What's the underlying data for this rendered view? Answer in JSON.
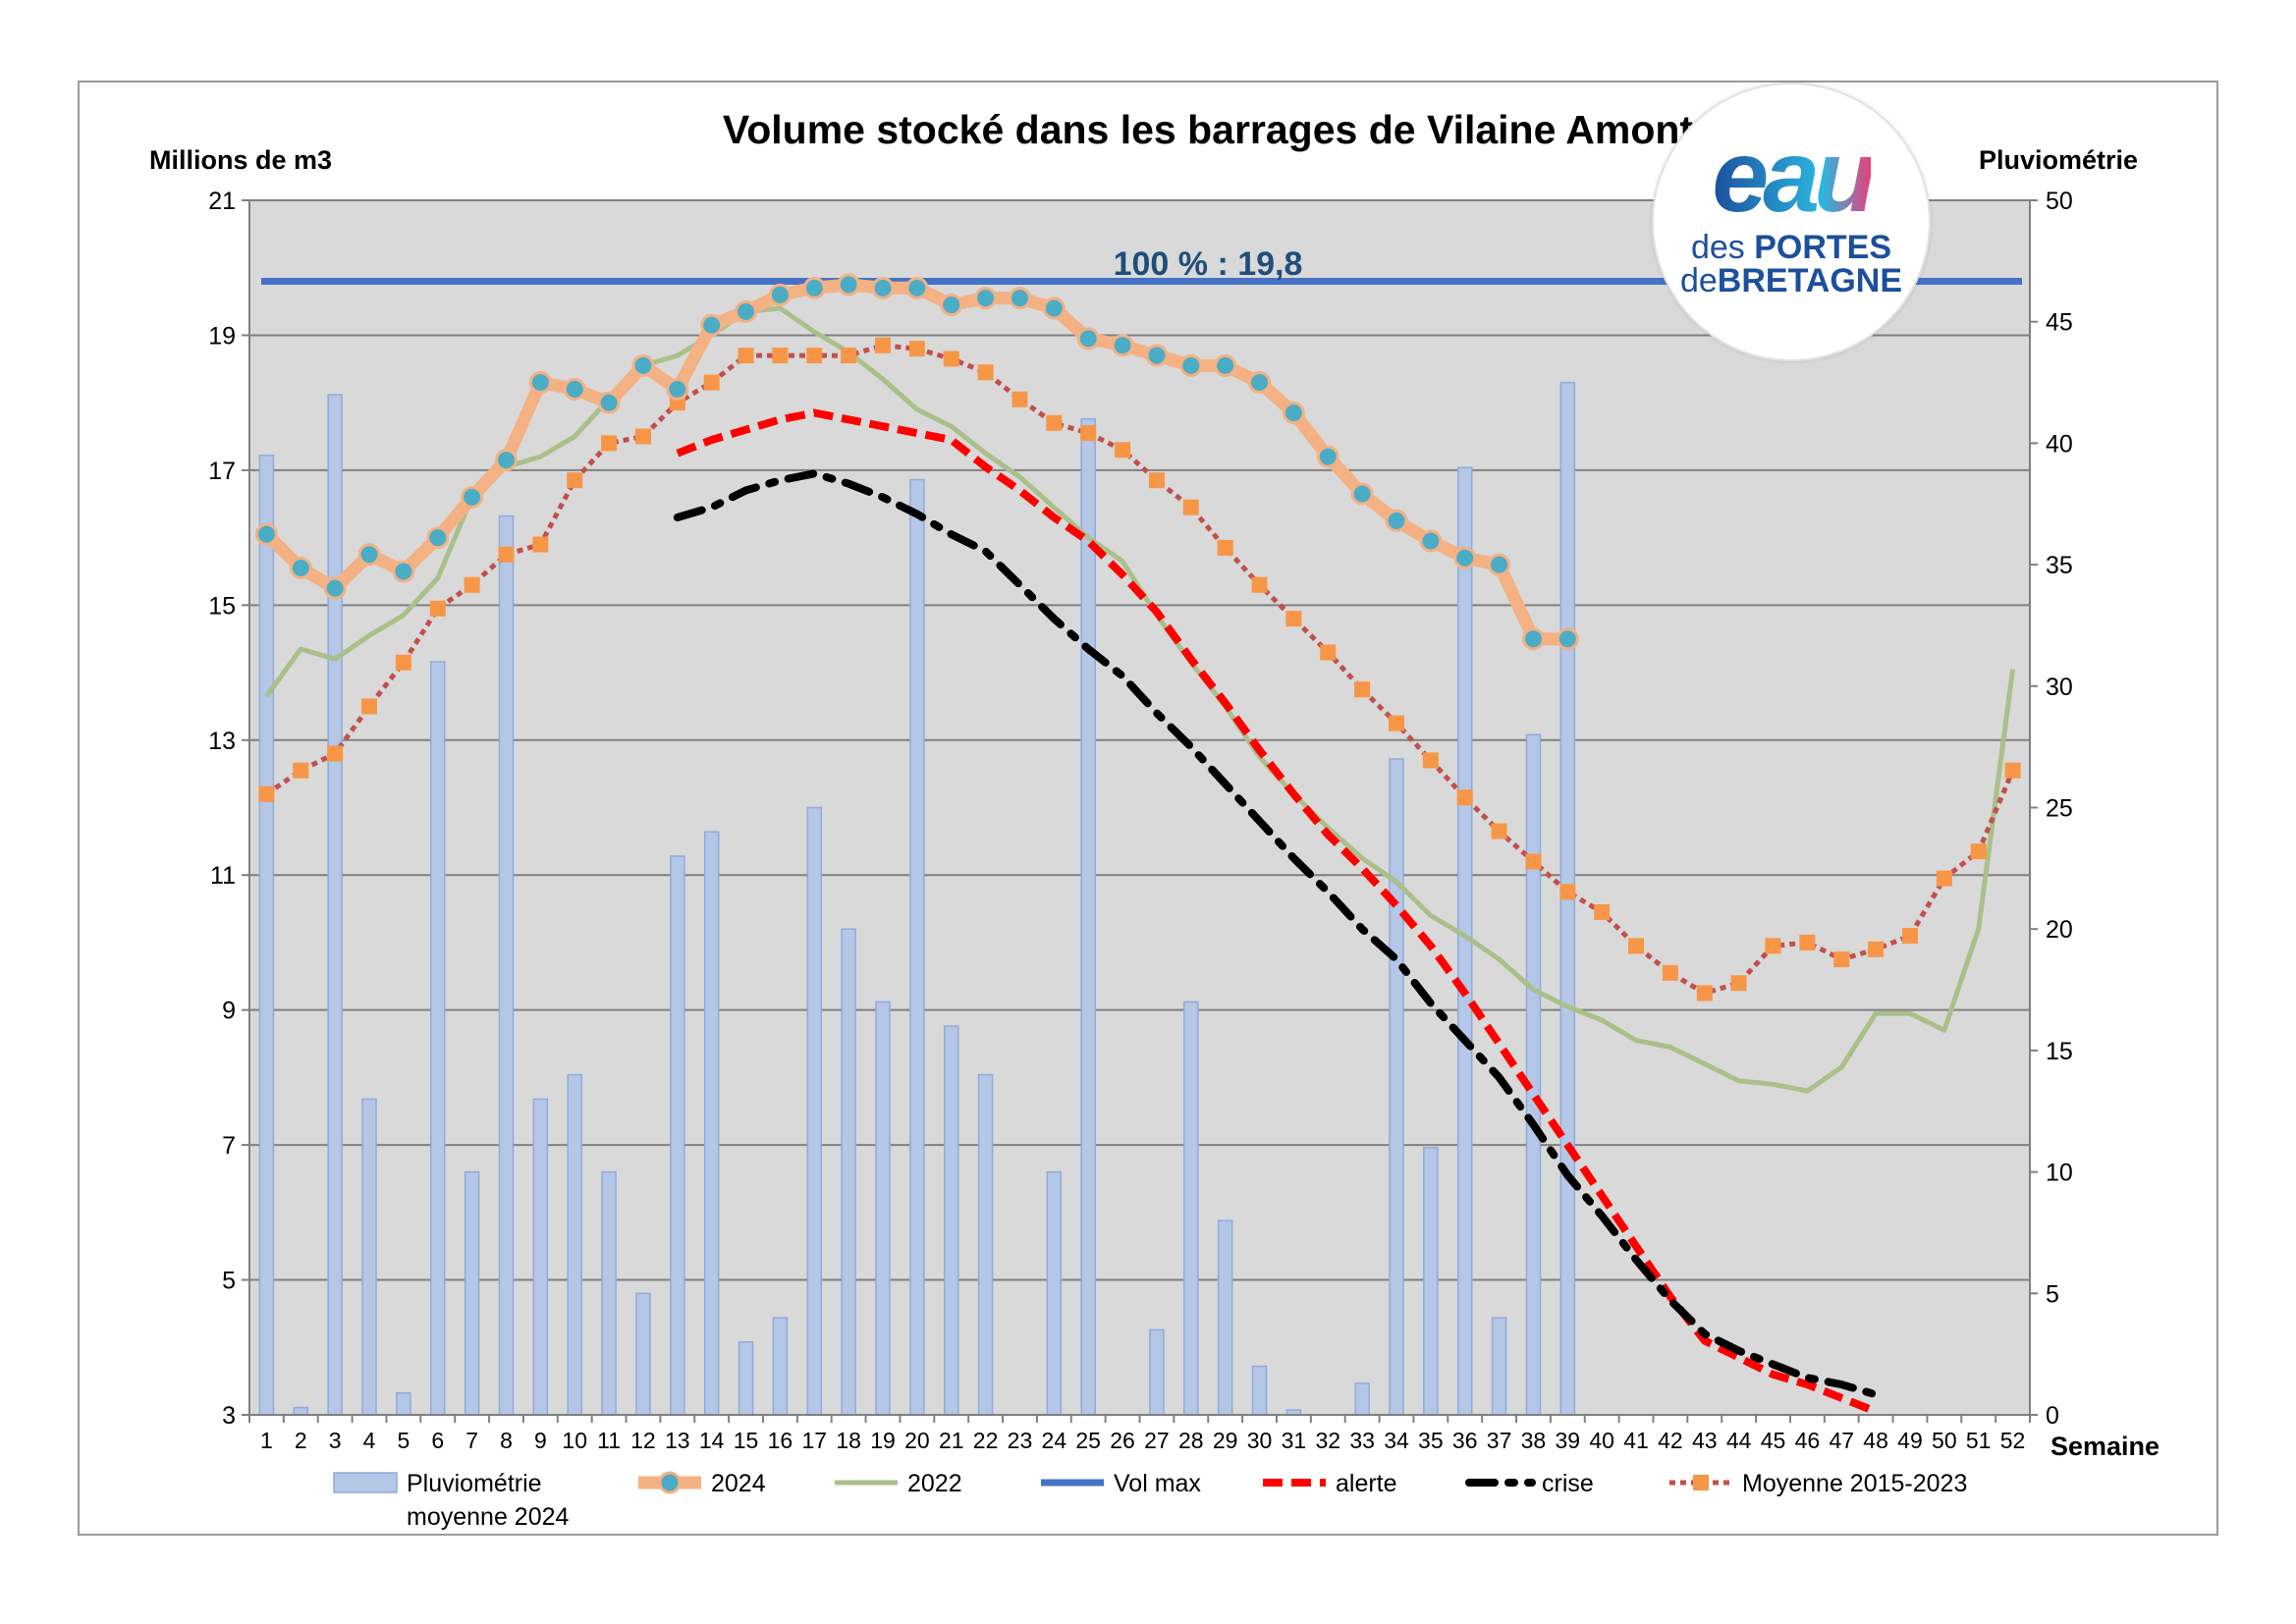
{
  "chart_data": {
    "type": "combo",
    "title": "Volume stocké dans les barrages de Vilaine Amont",
    "ylabel": "Millions de m3",
    "y2label": "Pluviométrie",
    "xlabel": "Semaine",
    "ylim": [
      3,
      21
    ],
    "y_ticks": [
      3,
      5,
      7,
      9,
      11,
      13,
      15,
      17,
      19,
      21
    ],
    "y2lim": [
      0,
      50
    ],
    "y2_ticks": [
      0,
      5,
      10,
      15,
      20,
      25,
      30,
      35,
      40,
      45,
      50
    ],
    "x_ticks": [
      1,
      2,
      3,
      4,
      5,
      6,
      7,
      8,
      9,
      10,
      11,
      12,
      13,
      14,
      15,
      16,
      17,
      18,
      19,
      20,
      21,
      22,
      23,
      24,
      25,
      26,
      27,
      28,
      29,
      30,
      31,
      32,
      33,
      34,
      35,
      36,
      37,
      38,
      39,
      40,
      41,
      42,
      43,
      44,
      45,
      46,
      47,
      48,
      49,
      50,
      51,
      52
    ],
    "grid": true,
    "legend_position": "bottom",
    "vol_max_label": "100 % : 19,8",
    "vol_max": 19.8,
    "series": [
      {
        "key": "pluvio",
        "name": "Pluviométrie moyenne 2024",
        "legend_lines": [
          "Pluviométrie",
          "moyenne 2024"
        ],
        "type": "bar",
        "axis": "right",
        "color": "#b4c7e7",
        "edge_color": "#8faadc",
        "x": [
          1,
          2,
          3,
          4,
          5,
          6,
          7,
          8,
          9,
          10,
          11,
          12,
          13,
          14,
          15,
          16,
          17,
          18,
          19,
          20,
          21,
          22,
          24,
          25,
          27,
          28,
          29,
          30,
          31,
          33,
          34,
          35,
          36,
          37,
          38,
          39
        ],
        "values": [
          39.5,
          0.3,
          42,
          13,
          0.9,
          31,
          10,
          37,
          13,
          14,
          10,
          5,
          23,
          24,
          3,
          4,
          25,
          20,
          17,
          38.5,
          16,
          14,
          10,
          41,
          3.5,
          17,
          8,
          2,
          0.2,
          1.3,
          27,
          11,
          39,
          4,
          28,
          42.5
        ]
      },
      {
        "key": "y2024",
        "name": "2024",
        "type": "line",
        "axis": "left",
        "color": "#f4b183",
        "marker_color": "#4bacc6",
        "x": [
          1,
          2,
          3,
          4,
          5,
          6,
          7,
          8,
          9,
          10,
          11,
          12,
          13,
          14,
          15,
          16,
          17,
          18,
          19,
          20,
          21,
          22,
          23,
          24,
          25,
          26,
          27,
          28,
          29,
          30,
          31,
          32,
          33,
          34,
          35,
          36,
          37,
          38,
          39
        ],
        "values": [
          16.05,
          15.55,
          15.25,
          15.75,
          15.5,
          16.0,
          16.6,
          17.15,
          18.3,
          18.2,
          18.0,
          18.55,
          18.2,
          19.15,
          19.35,
          19.6,
          19.7,
          19.75,
          19.7,
          19.7,
          19.45,
          19.55,
          19.55,
          19.4,
          18.95,
          18.85,
          18.7,
          18.55,
          18.55,
          18.3,
          17.85,
          17.2,
          16.65,
          16.25,
          15.95,
          15.7,
          15.6,
          14.5,
          14.5
        ]
      },
      {
        "key": "y2022",
        "name": "2022",
        "type": "line",
        "axis": "left",
        "color": "#a9c08a",
        "x": [
          1,
          2,
          3,
          4,
          5,
          6,
          7,
          8,
          9,
          10,
          11,
          12,
          13,
          14,
          15,
          16,
          17,
          18,
          19,
          20,
          21,
          22,
          23,
          24,
          25,
          26,
          27,
          28,
          29,
          30,
          31,
          32,
          33,
          34,
          35,
          36,
          37,
          38,
          39,
          40,
          41,
          42,
          43,
          44,
          45,
          46,
          47,
          48,
          49,
          50,
          51,
          52
        ],
        "values": [
          13.65,
          14.35,
          14.2,
          14.55,
          14.85,
          15.4,
          16.6,
          17.05,
          17.2,
          17.5,
          18.05,
          18.55,
          18.7,
          19.0,
          19.35,
          19.4,
          19.05,
          18.75,
          18.35,
          17.9,
          17.65,
          17.25,
          16.9,
          16.45,
          16.0,
          15.65,
          14.85,
          14.15,
          13.5,
          12.75,
          12.2,
          11.7,
          11.25,
          10.9,
          10.4,
          10.1,
          9.75,
          9.3,
          9.05,
          8.85,
          8.55,
          8.45,
          8.2,
          7.95,
          7.9,
          7.8,
          8.15,
          8.95,
          8.95,
          8.7,
          10.2,
          14.05
        ]
      },
      {
        "key": "volmax",
        "name": "Vol max",
        "type": "line",
        "axis": "left",
        "color": "#4472c4",
        "x": [
          1,
          52
        ],
        "values": [
          19.8,
          19.8
        ]
      },
      {
        "key": "alerte",
        "name": "alerte",
        "type": "line",
        "axis": "left",
        "color": "#ff0000",
        "x": [
          13,
          14,
          15,
          16,
          17,
          18,
          19,
          20,
          21,
          22,
          23,
          24,
          25,
          26,
          27,
          28,
          29,
          30,
          31,
          32,
          33,
          34,
          35,
          36,
          37,
          38,
          39,
          40,
          41,
          42,
          43,
          44,
          45,
          46,
          47,
          48
        ],
        "values": [
          17.25,
          17.45,
          17.6,
          17.75,
          17.85,
          17.75,
          17.65,
          17.55,
          17.45,
          17.05,
          16.7,
          16.3,
          15.95,
          15.45,
          14.9,
          14.2,
          13.55,
          12.85,
          12.2,
          11.6,
          11.1,
          10.55,
          9.95,
          9.25,
          8.5,
          7.75,
          7.0,
          6.25,
          5.5,
          4.75,
          4.1,
          3.85,
          3.6,
          3.45,
          3.25,
          3.05
        ]
      },
      {
        "key": "crise",
        "name": "crise",
        "type": "line",
        "axis": "left",
        "color": "#000000",
        "x": [
          13,
          14,
          15,
          16,
          17,
          18,
          19,
          20,
          21,
          22,
          23,
          24,
          25,
          26,
          27,
          28,
          29,
          30,
          31,
          32,
          33,
          34,
          35,
          36,
          37,
          38,
          39,
          40,
          41,
          42,
          43,
          44,
          45,
          46,
          47,
          48
        ],
        "values": [
          16.3,
          16.45,
          16.7,
          16.85,
          16.95,
          16.8,
          16.6,
          16.35,
          16.05,
          15.8,
          15.3,
          14.8,
          14.35,
          13.95,
          13.4,
          12.9,
          12.35,
          11.8,
          11.25,
          10.75,
          10.2,
          9.75,
          9.1,
          8.55,
          8.0,
          7.3,
          6.55,
          5.95,
          5.3,
          4.7,
          4.2,
          3.95,
          3.75,
          3.55,
          3.45,
          3.3
        ]
      },
      {
        "key": "moyenne",
        "name": "Moyenne 2015-2023",
        "type": "line",
        "axis": "left",
        "color": "#c0504d",
        "marker_color": "#f79646",
        "x": [
          1,
          2,
          3,
          4,
          5,
          6,
          7,
          8,
          9,
          10,
          11,
          12,
          13,
          14,
          15,
          16,
          17,
          18,
          19,
          20,
          21,
          22,
          23,
          24,
          25,
          26,
          27,
          28,
          29,
          30,
          31,
          32,
          33,
          34,
          35,
          36,
          37,
          38,
          39,
          40,
          41,
          42,
          43,
          44,
          45,
          46,
          47,
          48,
          49,
          50,
          51,
          52
        ],
        "values": [
          12.2,
          12.55,
          12.8,
          13.5,
          14.15,
          14.95,
          15.3,
          15.75,
          15.9,
          16.85,
          17.4,
          17.5,
          18.0,
          18.3,
          18.7,
          18.7,
          18.7,
          18.7,
          18.85,
          18.8,
          18.65,
          18.45,
          18.05,
          17.7,
          17.55,
          17.3,
          16.85,
          16.45,
          15.85,
          15.3,
          14.8,
          14.3,
          13.75,
          13.25,
          12.7,
          12.15,
          11.65,
          11.2,
          10.75,
          10.45,
          9.95,
          9.55,
          9.25,
          9.4,
          9.95,
          10.0,
          9.75,
          9.9,
          10.1,
          10.95,
          11.35,
          12.55
        ]
      }
    ]
  },
  "logo": {
    "eau": "eau",
    "line1_a": "des ",
    "line1_b": "PORTES",
    "line2_a": "de",
    "line2_b": "BRETAGNE",
    "color_blue": "#1c4f9c",
    "color_cyan": "#2bb7e0",
    "color_pink": "#e8407a"
  }
}
